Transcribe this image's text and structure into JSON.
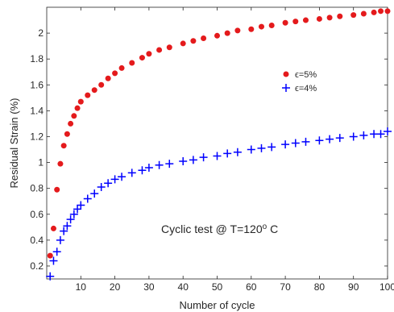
{
  "chart_data": {
    "type": "scatter",
    "title": "",
    "xlabel": "Number of cycle",
    "ylabel": "Residual Strain (%)",
    "xlim": [
      0,
      100
    ],
    "ylim": [
      0.1,
      2.2
    ],
    "xticks": [
      10,
      20,
      30,
      40,
      50,
      60,
      70,
      80,
      90,
      100
    ],
    "yticks": [
      0.2,
      0.4,
      0.6,
      0.8,
      1,
      1.2,
      1.4,
      1.6,
      1.8,
      2
    ],
    "grid": false,
    "legend_position": "upper-right (inside plot area)",
    "annotation": {
      "main": "Cyclic test @ T=120",
      "superscript": "o",
      "suffix": " C"
    },
    "series": [
      {
        "name": "ϵ=5%",
        "marker": "filled-circle",
        "color": "#e41a1c",
        "x": [
          1,
          2,
          3,
          4,
          5,
          6,
          7,
          8,
          9,
          10,
          12,
          14,
          16,
          18,
          20,
          22,
          25,
          28,
          30,
          33,
          36,
          40,
          43,
          46,
          50,
          53,
          56,
          60,
          63,
          66,
          70,
          73,
          76,
          80,
          83,
          86,
          90,
          93,
          96,
          98,
          100
        ],
        "values": [
          0.28,
          0.49,
          0.79,
          0.99,
          1.13,
          1.22,
          1.3,
          1.36,
          1.42,
          1.47,
          1.52,
          1.56,
          1.6,
          1.65,
          1.69,
          1.73,
          1.77,
          1.81,
          1.84,
          1.87,
          1.89,
          1.92,
          1.94,
          1.96,
          1.98,
          2.0,
          2.02,
          2.03,
          2.05,
          2.06,
          2.08,
          2.09,
          2.1,
          2.11,
          2.12,
          2.13,
          2.14,
          2.15,
          2.16,
          2.17,
          2.17
        ]
      },
      {
        "name": "ϵ=4%",
        "marker": "plus",
        "color": "#0000ff",
        "x": [
          1,
          2,
          3,
          4,
          5,
          6,
          7,
          8,
          9,
          10,
          12,
          14,
          16,
          18,
          20,
          22,
          25,
          28,
          30,
          33,
          36,
          40,
          43,
          46,
          50,
          53,
          56,
          60,
          63,
          66,
          70,
          73,
          76,
          80,
          83,
          86,
          90,
          93,
          96,
          98,
          100
        ],
        "values": [
          0.12,
          0.24,
          0.31,
          0.4,
          0.47,
          0.51,
          0.56,
          0.6,
          0.64,
          0.67,
          0.72,
          0.76,
          0.81,
          0.84,
          0.87,
          0.89,
          0.92,
          0.94,
          0.96,
          0.98,
          0.99,
          1.01,
          1.02,
          1.04,
          1.05,
          1.07,
          1.08,
          1.1,
          1.11,
          1.12,
          1.14,
          1.15,
          1.16,
          1.17,
          1.18,
          1.19,
          1.2,
          1.21,
          1.22,
          1.22,
          1.24
        ]
      }
    ]
  }
}
